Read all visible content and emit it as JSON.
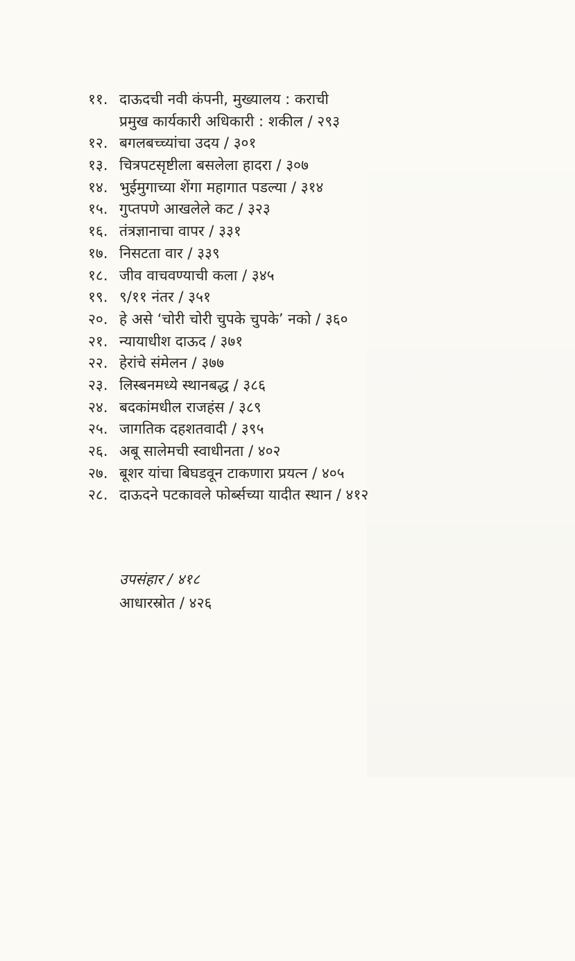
{
  "entries": [
    {
      "num": "११.",
      "title": "दाऊदची नवी कंपनी, मुख्यालय : कराची",
      "cont": "प्रमुख कार्यकारी अधिकारी : शकील / २९३"
    },
    {
      "num": "१२.",
      "title": "बगलबच्च्यांचा उदय / ३०१"
    },
    {
      "num": "१३.",
      "title": "चित्रपटसृष्टीला बसलेला हादरा / ३०७"
    },
    {
      "num": "१४.",
      "title": "भुईमुगाच्या शेंगा महागात पडल्या / ३१४"
    },
    {
      "num": "१५.",
      "title": "गुप्तपणे आखलेले कट / ३२३"
    },
    {
      "num": "१६.",
      "title": "तंत्रज्ञानाचा वापर / ३३१"
    },
    {
      "num": "१७.",
      "title": "निसटता वार / ३३९"
    },
    {
      "num": "१८.",
      "title": "जीव वाचवण्याची कला / ३४५"
    },
    {
      "num": "१९.",
      "title": "९/११ नंतर / ३५१"
    },
    {
      "num": "२०.",
      "title": "हे असे ‘चोरी चोरी चुपके चुपके’ नको / ३६०"
    },
    {
      "num": "२१.",
      "title": "न्यायाधीश दाऊद / ३७१"
    },
    {
      "num": "२२.",
      "title": "हेरांचे संमेलन / ३७७"
    },
    {
      "num": "२३.",
      "title": "लिस्बनमध्ये स्थानबद्ध / ३८६"
    },
    {
      "num": "२४.",
      "title": "बदकांमधील राजहंस / ३८९"
    },
    {
      "num": "२५.",
      "title": "जागतिक दहशतवादी / ३९५"
    },
    {
      "num": "२६.",
      "title": "अबू सालेमची स्वाधीनता / ४०२"
    },
    {
      "num": "२७.",
      "title": "बूशर यांचा बिघडवून टाकणारा प्रयत्न / ४०५"
    },
    {
      "num": "२८.",
      "title": "दाऊदने पटकावले फोर्ब्सच्या यादीत स्थान / ४१२"
    }
  ],
  "epilogue": "उपसंहार / ४१८",
  "sources": "आधारस्रोत / ४२६"
}
